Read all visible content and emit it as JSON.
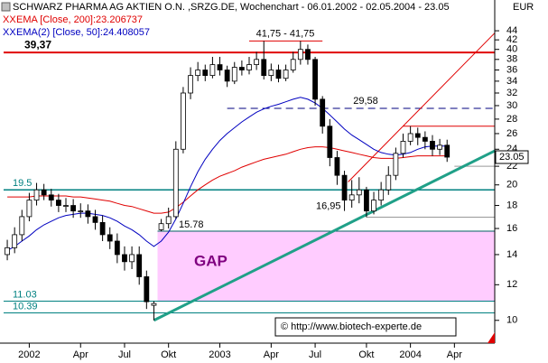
{
  "chart_data": {
    "type": "candlestick",
    "title": "SCHWARZ PHARMA AG AKTIEN O.N. ,SRZG.DE, Wochenchart - 06.01.2002 - 02.05.2004 - 23.05",
    "legend_marker": "XX",
    "currency": "EUR",
    "categories": [
      null,
      null,
      null,
      "2002",
      null,
      null,
      null,
      null,
      null,
      null,
      "Apr",
      null,
      null,
      null,
      null,
      null,
      "Jul",
      null,
      null,
      null,
      null,
      null,
      "Okt",
      null,
      null,
      null,
      null,
      null,
      null,
      "2003",
      null,
      null,
      null,
      null,
      null,
      null,
      "Apr",
      null,
      null,
      null,
      null,
      null,
      "Jul",
      null,
      null,
      null,
      null,
      null,
      null,
      "Okt",
      null,
      null,
      null,
      null,
      null,
      "2004",
      null,
      null,
      null,
      null,
      null,
      "Apr",
      null,
      null,
      null,
      null,
      null
    ],
    "open": [
      14,
      14.5,
      15.5,
      17,
      18.5,
      19.5,
      19,
      18.5,
      18,
      18,
      17.5,
      17.5,
      17,
      16.5,
      15.5,
      15,
      14,
      13.5,
      14,
      12.5,
      10.8,
      15.9,
      16.4,
      17,
      24,
      32,
      35,
      36,
      35,
      37,
      36,
      34,
      36.5,
      36,
      37,
      38,
      35,
      36,
      34.5,
      36,
      38,
      40,
      38,
      31,
      27,
      23,
      21,
      18.5,
      19,
      19.5,
      17.5,
      18.5,
      19.5,
      21,
      23.5,
      25,
      26,
      25.5,
      25,
      24,
      24.5,
      null,
      null,
      null,
      null,
      null,
      null
    ],
    "high": [
      15.1,
      16.1,
      17.6,
      19.2,
      20.2,
      20.1,
      19.6,
      19.1,
      18.7,
      18.6,
      18.2,
      18.1,
      17.6,
      17.1,
      16.1,
      15.6,
      14.6,
      14.6,
      14.6,
      12.9,
      11.03,
      16.8,
      17.8,
      25,
      33,
      36.5,
      37.5,
      37,
      38.5,
      38.5,
      36.8,
      37.5,
      37.8,
      38.5,
      39.5,
      41.75,
      37.2,
      37,
      37,
      39.5,
      41.75,
      41,
      38.5,
      31.5,
      28,
      23.8,
      21.5,
      20.5,
      20.8,
      19.8,
      19.3,
      20.3,
      22,
      24.2,
      26,
      27,
      26.8,
      26.3,
      25.8,
      25.3,
      25.2,
      null,
      null,
      null,
      null,
      null,
      null
    ],
    "low": [
      13.6,
      14.1,
      15,
      16.6,
      18,
      18.5,
      17.9,
      17.4,
      17.4,
      16.9,
      16.9,
      16.4,
      15.9,
      15,
      14.4,
      13.4,
      12.9,
      13,
      12,
      10.6,
      10,
      15.78,
      16,
      16.8,
      23.5,
      31,
      34,
      34,
      34.5,
      35,
      33,
      33.5,
      35,
      35.2,
      36,
      34.3,
      34,
      33.8,
      34,
      35.5,
      37,
      37,
      30,
      26,
      22,
      20,
      17.5,
      17.8,
      18.2,
      16.95,
      17.2,
      18,
      19,
      20.5,
      23,
      24.5,
      24.5,
      24,
      23.2,
      23.3,
      22.5,
      null,
      null,
      null,
      null,
      null,
      null
    ],
    "close": [
      14.5,
      15.5,
      17,
      18.5,
      19.5,
      19,
      18.5,
      18,
      18,
      17.5,
      17.5,
      17,
      16.5,
      15.5,
      15,
      14,
      13.5,
      14,
      12.5,
      11,
      10.9,
      16.4,
      17,
      24,
      32,
      35,
      36,
      35,
      37,
      36,
      34,
      36.5,
      36,
      37,
      38,
      35,
      36,
      34.5,
      36,
      38,
      40,
      38,
      31,
      27,
      23,
      21,
      18.5,
      19,
      19.5,
      17.5,
      18.5,
      19.5,
      21,
      23.5,
      25,
      26,
      25.5,
      25,
      24,
      24.5,
      23.05,
      null,
      null,
      null,
      null,
      null,
      null
    ],
    "series": [
      {
        "name": "EMA [Close, 200]:23.206737",
        "color": "#e00000",
        "values": [
          18.8,
          18.8,
          18.8,
          18.8,
          18.9,
          18.9,
          18.9,
          18.9,
          18.9,
          18.8,
          18.8,
          18.7,
          18.6,
          18.5,
          18.4,
          18.2,
          18.0,
          17.9,
          17.7,
          17.5,
          17.3,
          17.3,
          17.4,
          17.8,
          18.3,
          18.9,
          19.5,
          20.0,
          20.5,
          20.9,
          21.2,
          21.5,
          21.9,
          22.2,
          22.5,
          22.8,
          23.0,
          23.2,
          23.4,
          23.7,
          24.0,
          24.2,
          24.3,
          24.3,
          24.2,
          24.0,
          23.8,
          23.6,
          23.4,
          23.2,
          23.0,
          22.9,
          22.9,
          22.9,
          23.0,
          23.1,
          23.2,
          23.2,
          23.2,
          23.2,
          23.2,
          null,
          null,
          null,
          null,
          null,
          null
        ]
      },
      {
        "name": "EMA(2) [Close, 50]:24.408057",
        "color": "#0000c0",
        "values": [
          14.3,
          14.6,
          15,
          15.4,
          15.9,
          16.3,
          16.6,
          16.9,
          17.1,
          17.2,
          17.3,
          17.3,
          17.2,
          17.1,
          16.9,
          16.6,
          16.2,
          15.9,
          15.5,
          15.0,
          14.6,
          15.0,
          15.7,
          16.8,
          18.2,
          19.8,
          21.4,
          22.8,
          24.0,
          25.1,
          26.0,
          26.8,
          27.6,
          28.3,
          29.0,
          29.5,
          29.9,
          30.2,
          30.6,
          31.0,
          31.3,
          31.0,
          30.4,
          29.6,
          28.6,
          27.6,
          26.6,
          25.8,
          25.2,
          24.6,
          24.0,
          23.6,
          23.4,
          23.3,
          23.4,
          23.6,
          24.0,
          24.3,
          24.4,
          24.4,
          24.4,
          null,
          null,
          null,
          null,
          null,
          null
        ]
      }
    ],
    "ylim": [
      8.9,
      51.5
    ],
    "yticks": [
      10,
      12,
      14,
      16,
      18,
      20,
      22,
      24,
      26,
      28,
      30,
      32,
      34,
      36,
      38,
      40,
      42,
      44
    ],
    "log_scale": true,
    "candle_up_color": "#ffffff",
    "candle_down_color": "#000000",
    "levels": [
      {
        "value": 39.37,
        "label": "39,37",
        "color": "#e00000",
        "from": -0.5,
        "to": 66.5
      },
      {
        "value": 29.58,
        "label": "29,58",
        "color": "#00007f",
        "from": 30,
        "to": 66.5,
        "dashed": true
      },
      {
        "value": 19.5,
        "label": "19.5",
        "color": "#008080",
        "from": -0.5,
        "to": 66.5
      },
      {
        "value": 15.78,
        "label": "15.78",
        "color": "#006060",
        "from": 20.5,
        "to": 66.5
      },
      {
        "value": 11.03,
        "label": "11.03",
        "color": "#008080",
        "from": -0.5,
        "to": 66.5
      },
      {
        "value": 10.39,
        "label": "10.39",
        "color": "#008080",
        "from": -0.5,
        "to": 66.5
      },
      {
        "value": 41.75,
        "label": "41,75 - 41,75",
        "color": "#e00000",
        "from": 33,
        "to": 43
      },
      {
        "value": 16.95,
        "label": "16,95",
        "color": "#999999",
        "from": 49,
        "to": 66.5
      },
      {
        "value": 27,
        "color": "#e00000",
        "from": 54,
        "to": 66.5
      },
      {
        "value": 22,
        "color": "#999999",
        "from": 61,
        "to": 66.5
      }
    ],
    "trendlines": [
      {
        "from": [
          20,
          10
        ],
        "to": [
          66.5,
          23.8
        ],
        "color": "#20a088"
      },
      {
        "from": [
          46.5,
          20.3
        ],
        "to": [
          66.5,
          43.5
        ],
        "color": "#e00000"
      }
    ],
    "gap": {
      "label": "GAP",
      "from": 20.5,
      "to": 66.5,
      "top": 15.78,
      "bottom": 11.03,
      "color": "#ffccff",
      "text_color": "#800080"
    },
    "watermark": "© http://www.biotech-experte.de",
    "last_price": 23.05
  }
}
